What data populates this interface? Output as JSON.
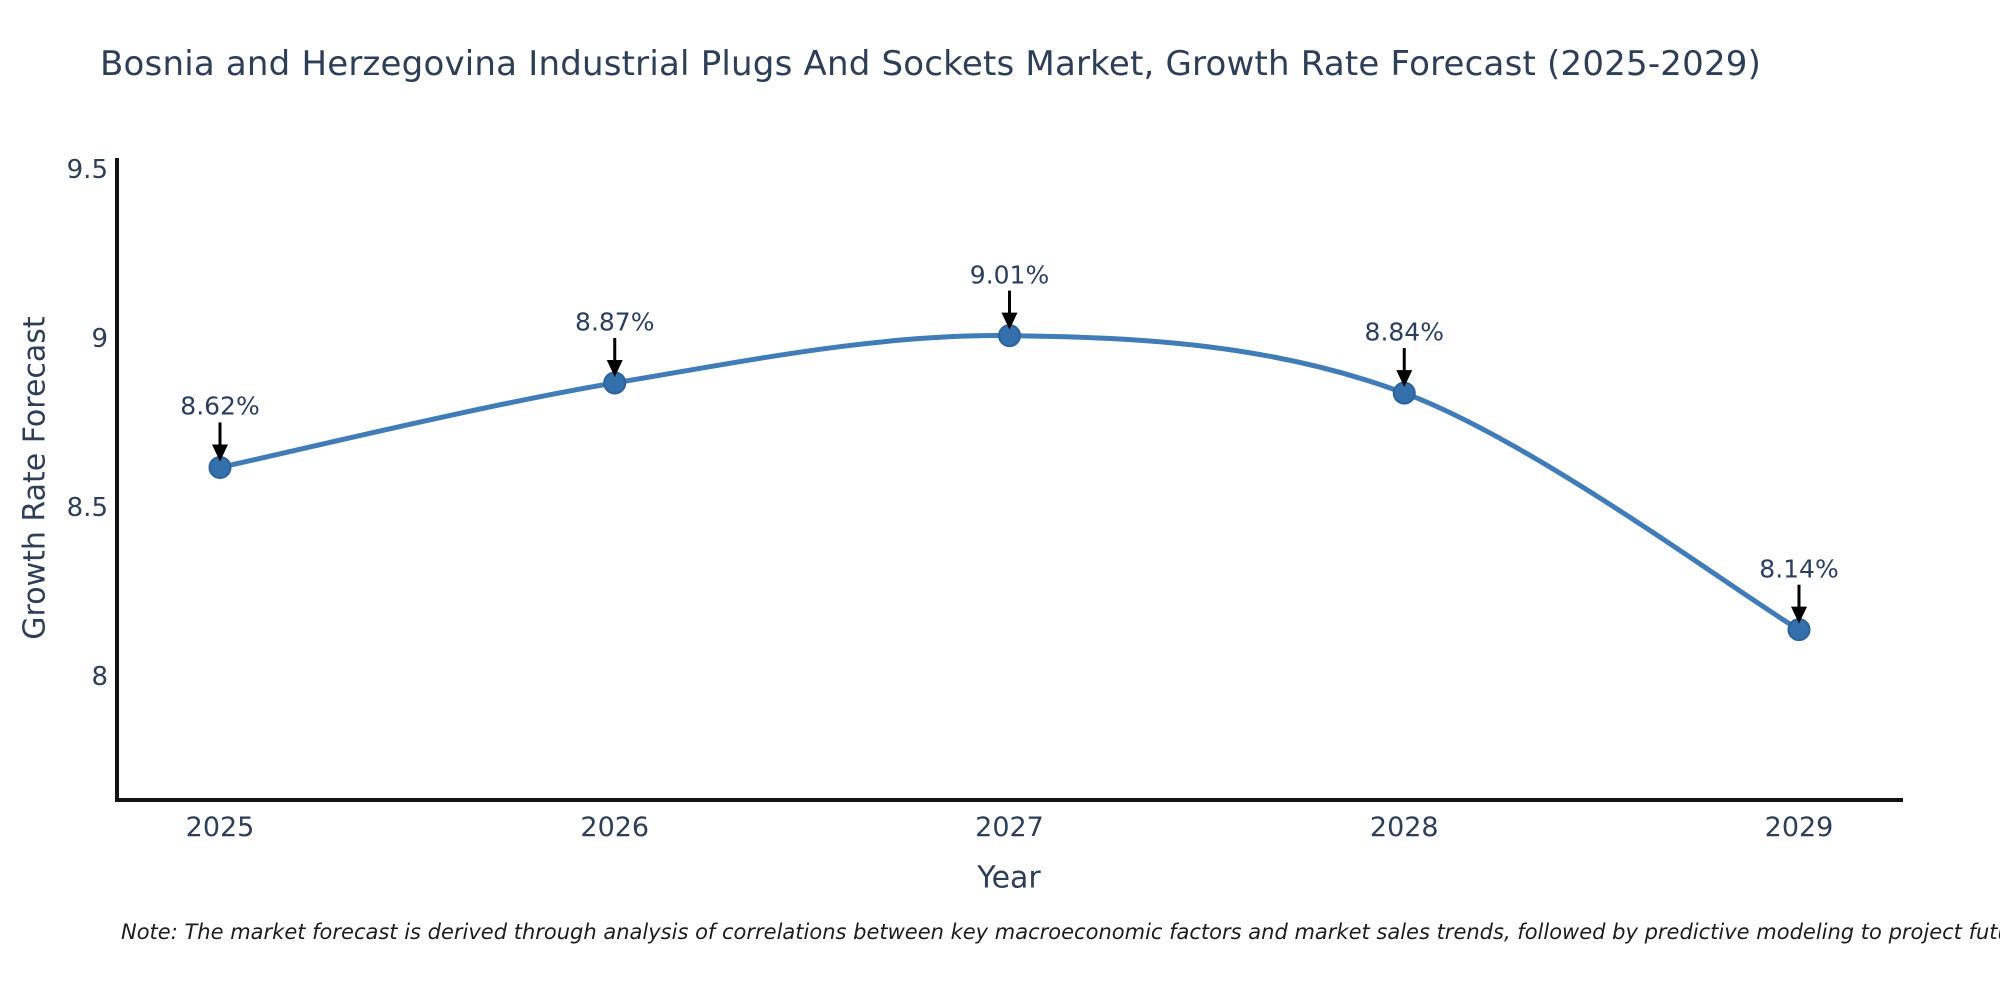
{
  "title": "Bosnia and Herzegovina Industrial Plugs And Sockets Market, Growth Rate Forecast (2025-2029)",
  "note": "Note: The market forecast is derived through analysis of correlations between key macroeconomic factors and market sales trends, followed by predictive modeling to project future sales",
  "chart_data": {
    "type": "line",
    "title": "Bosnia and Herzegovina Industrial Plugs And Sockets Market, Growth Rate Forecast (2025-2029)",
    "categories": [
      "2025",
      "2026",
      "2027",
      "2028",
      "2029"
    ],
    "values": [
      8.62,
      8.87,
      9.01,
      8.84,
      8.14
    ],
    "point_labels": [
      "8.62%",
      "8.87%",
      "9.01%",
      "8.84%",
      "8.14%"
    ],
    "xlabel": "Year",
    "ylabel": "Growth Rate Forecast",
    "ytick_values": [
      9.5,
      9,
      8.5,
      8
    ],
    "ytick_labels": [
      "9.5",
      "9",
      "8.5",
      "8"
    ],
    "ylim": [
      7.63,
      9.52
    ],
    "line_shape": "spline",
    "grid": false,
    "legend_position": "none",
    "line_color": "#3f7cb8",
    "marker_color": "#3470ab",
    "marker_edge_color": "#2d639c",
    "annotation_arrow_color": "#000000",
    "axis_line_color": "#131313"
  }
}
